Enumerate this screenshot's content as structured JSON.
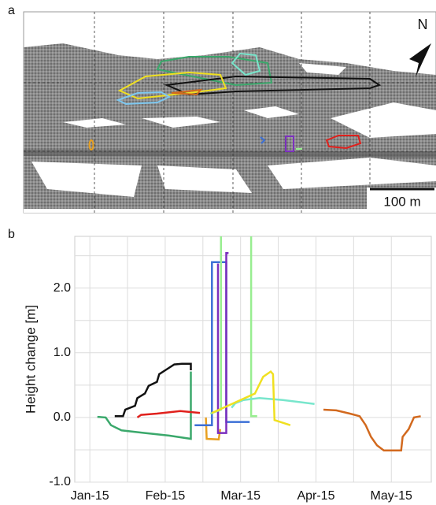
{
  "map": {
    "label": "a",
    "north": "N",
    "scale": "100 m"
  },
  "chart_data": {
    "type": "line",
    "panel_label": "b",
    "ylabel": "Height change [m]",
    "xlim": [
      -0.2,
      4.53
    ],
    "xticks": [
      {
        "value": 0,
        "label": "Jan-15"
      },
      {
        "value": 1,
        "label": "Feb-15"
      },
      {
        "value": 2,
        "label": "Mar-15"
      },
      {
        "value": 3,
        "label": "Apr-15"
      },
      {
        "value": 4,
        "label": "May-15"
      }
    ],
    "xgrid_minor": [
      0.5,
      1.5,
      2.5,
      3.5
    ],
    "ylim": [
      -1,
      2.8
    ],
    "yticks": [
      {
        "value": -1,
        "label": "-1.0"
      },
      {
        "value": 0,
        "label": "0.0"
      },
      {
        "value": 1,
        "label": "1.0"
      },
      {
        "value": 2,
        "label": "2.0"
      }
    ],
    "ygrid_minor": [
      -0.5,
      0.5,
      1.5,
      2.5
    ],
    "grid": true,
    "series": [
      {
        "color": "#3aa86b",
        "x": [
          0.1,
          0.21,
          0.28,
          0.42,
          0.73,
          1.05,
          1.34,
          1.34
        ],
        "values": [
          0.01,
          0.0,
          -0.12,
          -0.2,
          -0.24,
          -0.28,
          -0.33,
          0.71
        ]
      },
      {
        "color": "#111111",
        "x": [
          0.33,
          0.44,
          0.47,
          0.6,
          0.63,
          0.73,
          0.78,
          0.89,
          0.92,
          1.04,
          1.12,
          1.22,
          1.34,
          1.34
        ],
        "values": [
          0.02,
          0.02,
          0.12,
          0.18,
          0.3,
          0.37,
          0.49,
          0.55,
          0.67,
          0.76,
          0.82,
          0.83,
          0.83,
          0.73
        ]
      },
      {
        "color": "#e0201c",
        "x": [
          0.63,
          0.68,
          0.89,
          1.2,
          1.46
        ],
        "values": [
          0.0,
          0.04,
          0.06,
          0.1,
          0.07
        ]
      },
      {
        "color": "#e8a020",
        "x": [
          1.54,
          1.55,
          1.71,
          1.73
        ],
        "values": [
          0.0,
          -0.33,
          -0.34,
          -0.18
        ]
      },
      {
        "color": "#3b6fd6",
        "x": [
          1.39,
          1.62,
          1.62,
          1.81,
          1.81,
          2.12
        ],
        "values": [
          -0.12,
          -0.12,
          2.4,
          2.4,
          -0.07,
          -0.07
        ]
      },
      {
        "color": "#7b2fbe",
        "x": [
          1.7,
          1.7,
          1.81,
          1.81,
          1.84
        ],
        "values": [
          2.38,
          -0.24,
          -0.24,
          2.54,
          2.54
        ]
      },
      {
        "color": "#98ee90",
        "x": [
          1.6,
          1.74,
          1.74,
          null,
          2.14,
          2.14,
          2.22
        ],
        "values": [
          0.06,
          0.12,
          2.8,
          null,
          2.8,
          0.02,
          0.02
        ]
      },
      {
        "color": "#78e6cc",
        "x": [
          1.88,
          1.93,
          2.04,
          2.25,
          2.56,
          2.98
        ],
        "values": [
          0.15,
          0.22,
          0.27,
          0.3,
          0.27,
          0.21
        ]
      },
      {
        "color": "#f0e020",
        "x": [
          1.62,
          1.83,
          2.19,
          2.3,
          2.4,
          2.43,
          2.45,
          2.66
        ],
        "values": [
          0.07,
          0.18,
          0.37,
          0.63,
          0.71,
          0.67,
          -0.04,
          -0.12
        ]
      },
      {
        "color": "#d2691e",
        "x": [
          3.1,
          3.27,
          3.45,
          3.58,
          3.66,
          3.73,
          3.81,
          3.9,
          4.13,
          4.15,
          4.23,
          4.3,
          4.39
        ],
        "values": [
          0.12,
          0.11,
          0.06,
          0.02,
          -0.12,
          -0.3,
          -0.43,
          -0.51,
          -0.51,
          -0.3,
          -0.18,
          0.0,
          0.02
        ]
      }
    ]
  }
}
